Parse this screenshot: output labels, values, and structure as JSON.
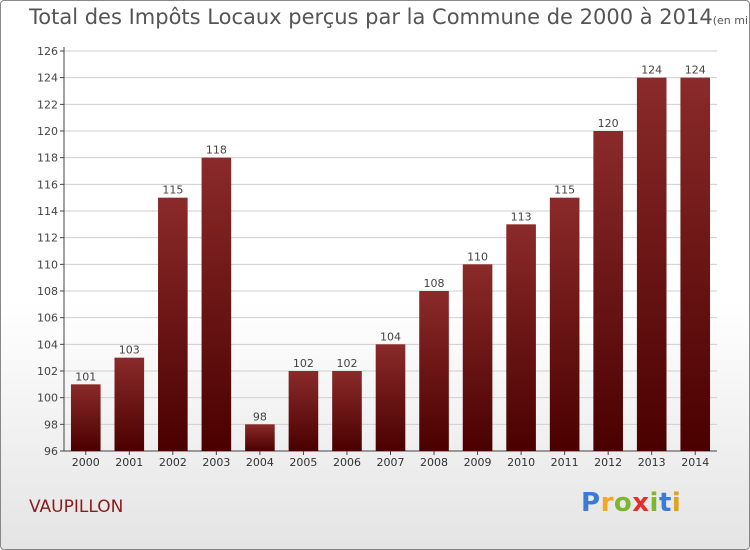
{
  "chart_data": {
    "type": "bar",
    "title": "Total des Impôts Locaux perçus par la Commune de 2000 à 2014",
    "unit_label": "(en milliers d'€)",
    "categories": [
      "2000",
      "2001",
      "2002",
      "2003",
      "2004",
      "2005",
      "2006",
      "2007",
      "2008",
      "2009",
      "2010",
      "2011",
      "2012",
      "2013",
      "2014"
    ],
    "values": [
      101,
      103,
      115,
      118,
      98,
      102,
      102,
      104,
      108,
      110,
      113,
      115,
      120,
      124,
      124
    ],
    "ylim": [
      96,
      126
    ],
    "yticks": [
      96,
      98,
      100,
      102,
      104,
      106,
      108,
      110,
      112,
      114,
      116,
      118,
      120,
      122,
      124,
      126
    ],
    "xlabel": "",
    "ylabel": "",
    "grid": true,
    "bar_color": "#7a1010"
  },
  "commune": "VAUPILLON",
  "brand": {
    "letters": [
      "P",
      "r",
      "o",
      "x",
      "i",
      "t",
      "i"
    ],
    "colors": [
      "#3a7bd5",
      "#f5a623",
      "#7cb82f",
      "#e0302b",
      "#7cb82f",
      "#3a7bd5",
      "#e0a020"
    ]
  }
}
